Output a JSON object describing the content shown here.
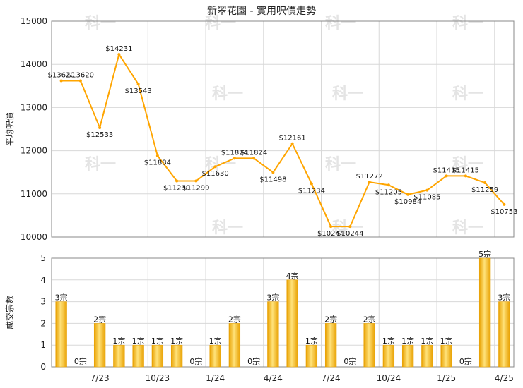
{
  "colors": {
    "line": "#FFA500",
    "bar_light": "#FFE27A",
    "bar_dark": "#E8A000",
    "grid": "#d8d8d8",
    "axis": "#888888"
  },
  "watermark": "科一",
  "chart_data": [
    {
      "type": "line",
      "title": "新翠花園 - 實用呎價走勢",
      "ylabel": "平均呎價",
      "ylim": [
        10000,
        15000
      ],
      "yticks": [
        "10000",
        "11000",
        "12000",
        "13000",
        "14000",
        "15000"
      ],
      "grid": true,
      "series": [
        {
          "values": [
            13620,
            13620,
            12533,
            14231,
            13543,
            11884,
            11299,
            11299,
            11630,
            11824,
            11824,
            11498,
            12161,
            11234,
            10244,
            10244,
            11272,
            11205,
            10984,
            11085,
            11415,
            11415,
            11259,
            10753
          ],
          "labels": [
            "$13620",
            "$13620",
            "$12533",
            "$14231",
            "$13543",
            "$11884",
            "$11299",
            "$11299",
            "$11630",
            "$11824",
            "$11824",
            "$11498",
            "$12161",
            "$11234",
            "$10244",
            "$10244",
            "$11272",
            "$11205",
            "$10984",
            "$11085",
            "$11415",
            "$11415",
            "$11259",
            "$10753"
          ]
        }
      ]
    },
    {
      "type": "bar",
      "ylabel": "成交宗數",
      "ylim": [
        0,
        5
      ],
      "yticks": [
        "0",
        "1",
        "2",
        "3",
        "4",
        "5"
      ],
      "grid": true,
      "x_tick_labels": [
        "7/23",
        "10/23",
        "1/24",
        "4/24",
        "7/24",
        "10/24",
        "1/25",
        "4/25"
      ],
      "values": [
        3,
        0,
        2,
        1,
        1,
        1,
        1,
        0,
        1,
        2,
        0,
        3,
        4,
        1,
        2,
        0,
        2,
        1,
        1,
        1,
        1,
        0,
        5,
        3
      ],
      "labels": [
        "3宗",
        "0宗",
        "2宗",
        "1宗",
        "1宗",
        "1宗",
        "1宗",
        "0宗",
        "1宗",
        "2宗",
        "0宗",
        "3宗",
        "4宗",
        "1宗",
        "2宗",
        "0宗",
        "2宗",
        "1宗",
        "1宗",
        "1宗",
        "1宗",
        "0宗",
        "5宗",
        "3宗"
      ]
    }
  ]
}
